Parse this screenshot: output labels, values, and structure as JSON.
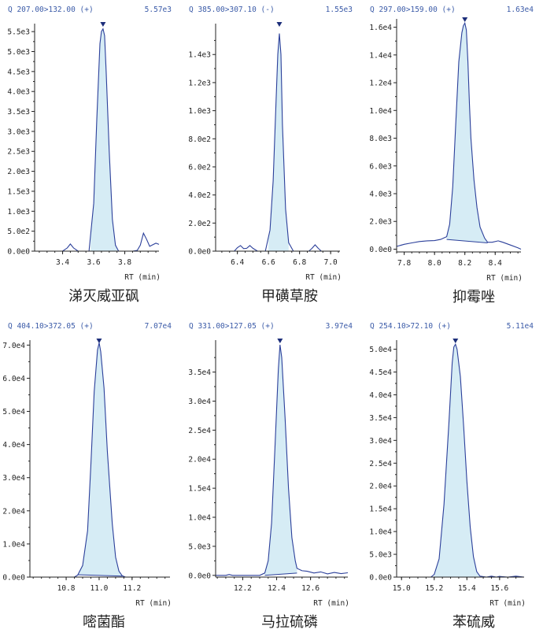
{
  "colors": {
    "trace": "#2b3f9a",
    "fill": "#d6ecf5",
    "header": "#3b5ba8",
    "axis": "#222222"
  },
  "chart_data": [
    {
      "type": "area",
      "compound": "涕灭威亚砜",
      "header": {
        "transition": "Q 207.00>132.00 (+)",
        "max_intensity": "5.57e3"
      },
      "xlabel": "RT (min)",
      "xlim": [
        3.22,
        4.02
      ],
      "ylim": [
        0,
        5700
      ],
      "xticks": [
        "3.4",
        "3.6",
        "3.8"
      ],
      "yticks": [
        "0.0e0",
        "5.0e2",
        "1.0e3",
        "1.5e3",
        "2.0e3",
        "2.5e3",
        "3.0e3",
        "3.5e3",
        "4.0e3",
        "4.5e3",
        "5.0e3",
        "5.5e3"
      ],
      "apex_rt": 3.66,
      "peak_window": [
        3.58,
        3.75
      ],
      "baseline": [
        [
          3.58,
          0
        ],
        [
          3.75,
          0
        ]
      ],
      "series": [
        {
          "x": [
            3.22,
            3.4,
            3.43,
            3.45,
            3.47,
            3.5,
            3.57,
            3.6,
            3.62,
            3.64,
            3.65,
            3.66,
            3.67,
            3.68,
            3.7,
            3.72,
            3.74,
            3.76,
            3.85,
            3.88,
            3.9,
            3.92,
            3.94,
            3.96,
            3.98,
            4.0,
            4.02
          ],
          "y": [
            0,
            0,
            80,
            180,
            80,
            0,
            0,
            1200,
            3300,
            5200,
            5500,
            5570,
            5400,
            4500,
            2500,
            800,
            150,
            0,
            0,
            20,
            150,
            450,
            300,
            120,
            160,
            200,
            170
          ]
        }
      ]
    },
    {
      "type": "area",
      "compound": "甲磺草胺",
      "header": {
        "transition": "Q 385.00>307.10 (-)",
        "max_intensity": "1.55e3"
      },
      "xlabel": "RT (min)",
      "xlim": [
        6.26,
        7.06
      ],
      "ylim": [
        0,
        1620
      ],
      "xticks": [
        "6.4",
        "6.6",
        "6.8",
        "7.0"
      ],
      "yticks": [
        "0.0e0",
        "2.0e2",
        "4.0e2",
        "6.0e2",
        "8.0e2",
        "1.0e3",
        "1.2e3",
        "1.4e3"
      ],
      "apex_rt": 6.67,
      "peak_window": [
        6.6,
        6.73
      ],
      "baseline": [
        [
          6.6,
          0
        ],
        [
          6.73,
          0
        ]
      ],
      "series": [
        {
          "x": [
            6.26,
            6.38,
            6.4,
            6.42,
            6.44,
            6.46,
            6.48,
            6.5,
            6.53,
            6.58,
            6.61,
            6.63,
            6.65,
            6.66,
            6.67,
            6.68,
            6.69,
            6.71,
            6.73,
            6.76,
            6.8,
            6.86,
            6.88,
            6.9,
            6.92,
            6.94,
            7.06
          ],
          "y": [
            0,
            0,
            25,
            40,
            18,
            20,
            40,
            20,
            0,
            0,
            150,
            500,
            1100,
            1400,
            1550,
            1400,
            900,
            300,
            60,
            0,
            0,
            0,
            20,
            45,
            20,
            0,
            0
          ]
        }
      ]
    },
    {
      "type": "area",
      "compound": "抑霉唑",
      "header": {
        "transition": "Q 297.00>159.00 (+)",
        "max_intensity": "1.63e4"
      },
      "xlabel": "RT (min)",
      "xlim": [
        7.75,
        8.57
      ],
      "ylim": [
        -200,
        16600
      ],
      "xticks": [
        "7.8",
        "8.0",
        "8.2",
        "8.4"
      ],
      "yticks": [
        "0.0e0",
        "2.0e3",
        "4.0e3",
        "6.0e3",
        "8.0e3",
        "1.0e4",
        "1.2e4",
        "1.4e4",
        "1.6e4"
      ],
      "apex_rt": 8.2,
      "peak_window": [
        8.08,
        8.35
      ],
      "baseline": [
        [
          8.08,
          700
        ],
        [
          8.35,
          450
        ]
      ],
      "series": [
        {
          "x": [
            7.75,
            7.8,
            7.85,
            7.9,
            7.95,
            8.0,
            8.04,
            8.06,
            8.08,
            8.1,
            8.12,
            8.14,
            8.16,
            8.18,
            8.19,
            8.2,
            8.21,
            8.22,
            8.23,
            8.24,
            8.26,
            8.28,
            8.3,
            8.33,
            8.35,
            8.38,
            8.42,
            8.45,
            8.5,
            8.55,
            8.57
          ],
          "y": [
            200,
            350,
            450,
            550,
            600,
            620,
            700,
            800,
            900,
            1800,
            4500,
            9000,
            13500,
            15600,
            16100,
            16300,
            15800,
            13500,
            10500,
            8000,
            5000,
            3000,
            1600,
            800,
            500,
            500,
            600,
            500,
            300,
            100,
            0
          ]
        }
      ]
    },
    {
      "type": "area",
      "compound": "嘧菌酯",
      "header": {
        "transition": "Q 404.10>372.05 (+)",
        "max_intensity": "7.07e4"
      },
      "xlabel": "RT (min)",
      "xlim": [
        10.58,
        11.43
      ],
      "ylim": [
        0,
        71500
      ],
      "xticks": [
        "10.8",
        "11.0",
        "11.2"
      ],
      "yticks": [
        "0.0e0",
        "1.0e4",
        "2.0e4",
        "3.0e4",
        "4.0e4",
        "5.0e4",
        "6.0e4",
        "7.0e4"
      ],
      "apex_rt": 11.0,
      "peak_window": [
        10.87,
        11.14
      ],
      "baseline": [
        [
          10.87,
          700
        ],
        [
          11.14,
          300
        ]
      ],
      "series": [
        {
          "x": [
            10.58,
            10.85,
            10.87,
            10.9,
            10.93,
            10.95,
            10.97,
            10.99,
            11.0,
            11.01,
            11.03,
            11.05,
            11.08,
            11.1,
            11.12,
            11.14,
            11.16,
            11.43
          ],
          "y": [
            0,
            0,
            600,
            3500,
            14000,
            34000,
            56000,
            68500,
            70700,
            68000,
            57000,
            38000,
            16000,
            6000,
            1800,
            400,
            0,
            0
          ]
        }
      ]
    },
    {
      "type": "area",
      "compound": "马拉硫磷",
      "header": {
        "transition": "Q 331.00>127.05 (+)",
        "max_intensity": "3.97e4"
      },
      "xlabel": "RT (min)",
      "xlim": [
        12.04,
        12.82
      ],
      "ylim": [
        -300,
        40500
      ],
      "xticks": [
        "12.2",
        "12.4",
        "12.6"
      ],
      "yticks": [
        "0.0e0",
        "5.0e3",
        "1.0e4",
        "1.5e4",
        "2.0e4",
        "2.5e4",
        "3.0e4",
        "3.5e4"
      ],
      "apex_rt": 12.42,
      "peak_window": [
        12.33,
        12.52
      ],
      "baseline": [
        [
          12.33,
          0
        ],
        [
          12.52,
          400
        ]
      ],
      "series": [
        {
          "x": [
            12.04,
            12.1,
            12.12,
            12.14,
            12.2,
            12.3,
            12.33,
            12.35,
            12.37,
            12.39,
            12.41,
            12.42,
            12.43,
            12.45,
            12.47,
            12.49,
            12.51,
            12.52,
            12.55,
            12.58,
            12.62,
            12.66,
            12.7,
            12.74,
            12.78,
            12.82
          ],
          "y": [
            0,
            0,
            150,
            0,
            0,
            0,
            400,
            2500,
            9000,
            22000,
            35500,
            39700,
            37500,
            27000,
            15000,
            6500,
            2500,
            1200,
            800,
            700,
            400,
            600,
            250,
            500,
            300,
            450
          ]
        }
      ]
    },
    {
      "type": "area",
      "compound": "苯硫威",
      "header": {
        "transition": "Q 254.10>72.10 (+)",
        "max_intensity": "5.11e4"
      },
      "xlabel": "RT (min)",
      "xlim": [
        14.97,
        15.75
      ],
      "ylim": [
        0,
        52000
      ],
      "xticks": [
        "15.0",
        "15.2",
        "15.4",
        "15.6"
      ],
      "yticks": [
        "0.0e0",
        "5.0e3",
        "1.0e4",
        "1.5e4",
        "2.0e4",
        "2.5e4",
        "3.0e4",
        "3.5e4",
        "4.0e4",
        "4.5e4",
        "5.0e4"
      ],
      "apex_rt": 15.33,
      "peak_window": [
        15.2,
        15.48
      ],
      "baseline": [
        [
          15.2,
          0
        ],
        [
          15.48,
          0
        ]
      ],
      "series": [
        {
          "x": [
            14.97,
            15.18,
            15.2,
            15.23,
            15.26,
            15.29,
            15.31,
            15.32,
            15.33,
            15.34,
            15.36,
            15.38,
            15.4,
            15.42,
            15.44,
            15.46,
            15.48,
            15.52,
            15.55,
            15.58,
            15.6,
            15.65,
            15.7,
            15.75
          ],
          "y": [
            0,
            0,
            600,
            4000,
            16000,
            34000,
            47000,
            50500,
            51100,
            50000,
            44000,
            33000,
            21000,
            11000,
            4500,
            1200,
            200,
            0,
            200,
            0,
            150,
            0,
            200,
            0
          ]
        }
      ]
    }
  ]
}
